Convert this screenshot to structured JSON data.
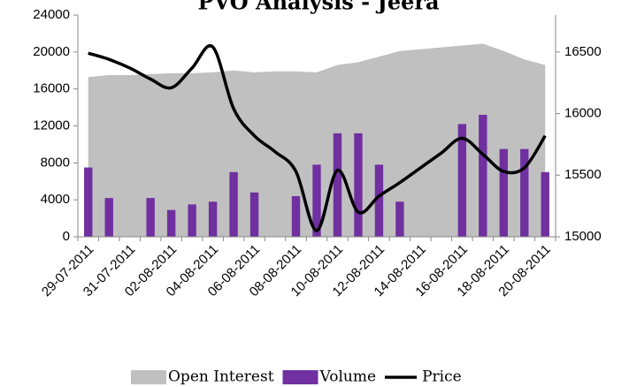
{
  "chart_data": {
    "type": "combo",
    "title": "PVO Analysis - Jeera",
    "categories": [
      "29-07-2011",
      null,
      "31-07-2011",
      null,
      "02-08-2011",
      null,
      "04-08-2011",
      null,
      "06-08-2011",
      null,
      "08-08-2011",
      null,
      "10-08-2011",
      null,
      "12-08-2011",
      null,
      "14-08-2011",
      null,
      "16-08-2011",
      null,
      "18-08-2011",
      null,
      "20-08-2011"
    ],
    "series": [
      {
        "name": "Open Interest",
        "kind": "area",
        "color": "#c0c0c0",
        "values": [
          17300,
          17500,
          17500,
          17600,
          17700,
          17700,
          17800,
          18000,
          17800,
          17900,
          17900,
          17800,
          18600,
          18900,
          19500,
          20100,
          20300,
          20500,
          20700,
          20900,
          20100,
          19200,
          18600
        ]
      },
      {
        "name": "Volume",
        "kind": "bar",
        "color": "#7030a0",
        "values": [
          7500,
          4200,
          0,
          4200,
          2900,
          3500,
          3800,
          7000,
          4800,
          0,
          4400,
          7800,
          11200,
          11200,
          7800,
          3800,
          0,
          0,
          12200,
          13200,
          9500,
          9500,
          7000
        ]
      },
      {
        "name": "Price",
        "kind": "line",
        "color": "#000000",
        "axis": "y2",
        "values": [
          16490,
          16440,
          16370,
          16280,
          16210,
          16370,
          16540,
          16040,
          15820,
          15690,
          15530,
          15050,
          15540,
          15200,
          15330,
          15440,
          15560,
          15680,
          15800,
          15670,
          15530,
          15560,
          15820
        ]
      }
    ],
    "ylim": [
      0,
      24000
    ],
    "yticks": [
      0,
      4000,
      8000,
      12000,
      16000,
      20000,
      24000
    ],
    "y2lim": [
      15000,
      16800
    ],
    "y2ticks": [
      15000,
      15500,
      16000,
      16500
    ],
    "legend": "bottom"
  }
}
